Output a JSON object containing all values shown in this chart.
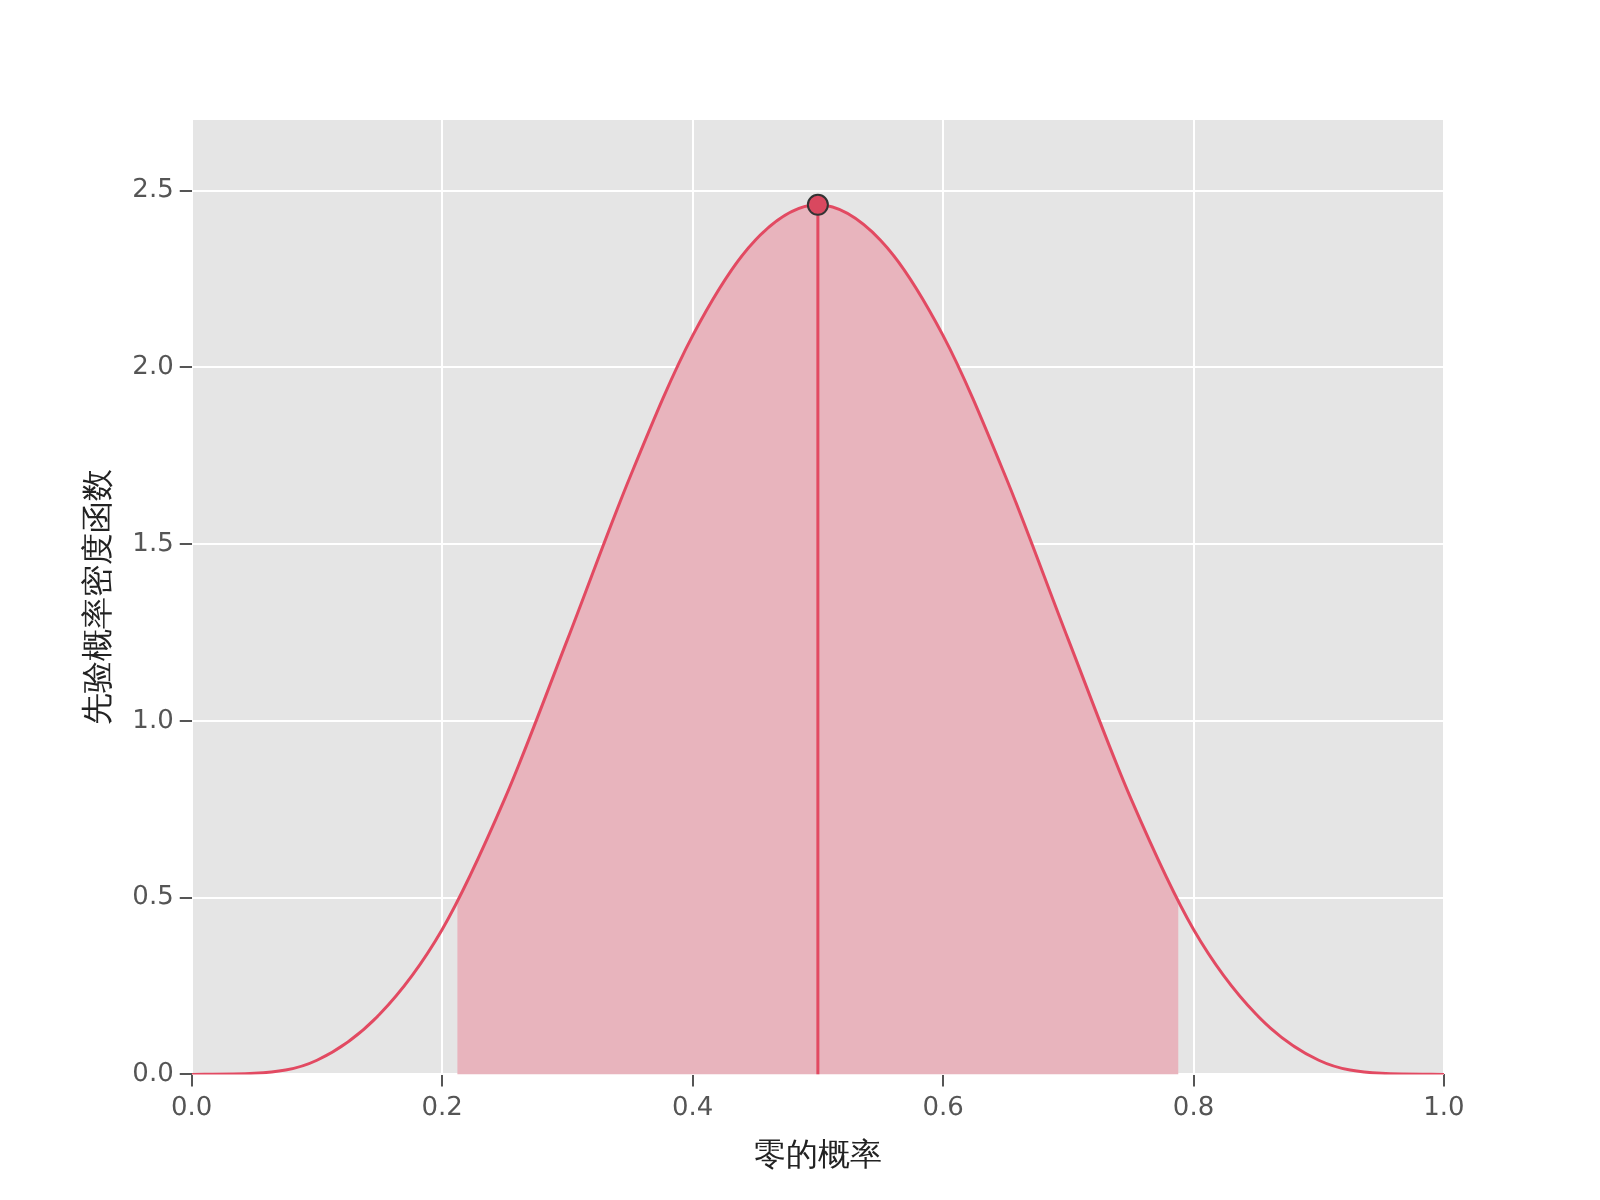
{
  "chart_data": {
    "type": "line",
    "xlabel": "零的概率",
    "ylabel": "先验概率密度函数",
    "xlim": [
      0,
      1
    ],
    "ylim": [
      0,
      2.7
    ],
    "xticks": [
      {
        "value": 0,
        "label": "0.0"
      },
      {
        "value": 0.2,
        "label": "0.2"
      },
      {
        "value": 0.4,
        "label": "0.4"
      },
      {
        "value": 0.6,
        "label": "0.6"
      },
      {
        "value": 0.8,
        "label": "0.8"
      },
      {
        "value": 1,
        "label": "1.0"
      }
    ],
    "yticks": [
      {
        "value": 0,
        "label": "0.0"
      },
      {
        "value": 0.5,
        "label": "0.5"
      },
      {
        "value": 1,
        "label": "1.0"
      },
      {
        "value": 1.5,
        "label": "1.5"
      },
      {
        "value": 2,
        "label": "2.0"
      },
      {
        "value": 2.5,
        "label": "2.5"
      }
    ],
    "grid": true,
    "legend": false,
    "series": [
      {
        "type": "area",
        "color": "#e8b4bd",
        "x": [
          0.212,
          0.25,
          0.3,
          0.35,
          0.4,
          0.45,
          0.5,
          0.55,
          0.6,
          0.65,
          0.7,
          0.75,
          0.788
        ],
        "values": [
          0.49,
          0.78,
          1.23,
          1.69,
          2.09,
          2.36,
          2.46,
          2.36,
          2.09,
          1.69,
          1.23,
          0.78,
          0.49
        ]
      },
      {
        "color": "#e24a62",
        "marker": "none",
        "x": [
          0,
          0.05,
          0.1,
          0.15,
          0.2,
          0.25,
          0.3,
          0.35,
          0.4,
          0.45,
          0.5,
          0.55,
          0.6,
          0.65,
          0.7,
          0.75,
          0.8,
          0.85,
          0.9,
          0.95,
          1
        ],
        "values": [
          0,
          0.003,
          0.04,
          0.17,
          0.41,
          0.78,
          1.23,
          1.69,
          2.09,
          2.36,
          2.46,
          2.36,
          2.09,
          1.69,
          1.23,
          0.78,
          0.41,
          0.17,
          0.04,
          0.003,
          0
        ]
      },
      {
        "type": "line",
        "color": "#e24a62",
        "marker": "none",
        "x": [
          0.5,
          0.5
        ],
        "values": [
          0,
          2.46
        ]
      },
      {
        "type": "scatter",
        "color": "#d9485f",
        "marker": "circle",
        "x": [
          0.5
        ],
        "values": [
          2.46
        ]
      }
    ]
  }
}
